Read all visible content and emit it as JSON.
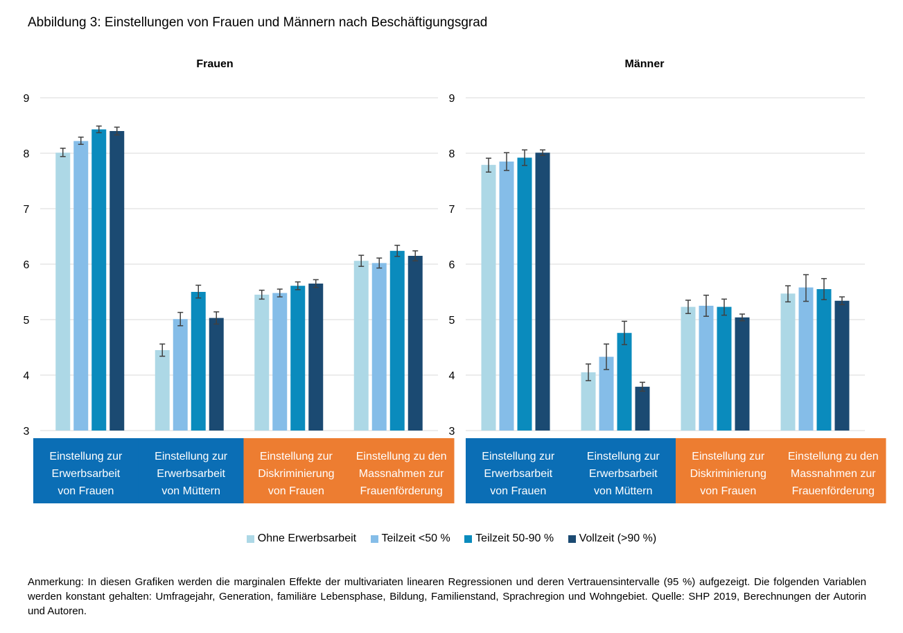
{
  "figure": {
    "title": "Abbildung 3: Einstellungen von Frauen und Männern nach Beschäftigungsgrad",
    "note": "Anmerkung: In diesen Grafiken werden die marginalen Effekte der multivariaten linearen Regressionen und deren Vertrauensintervalle (95 %) aufgezeigt. Die folgenden Variablen werden konstant gehalten: Umfragejahr, Generation, familiäre Lebensphase, Bildung, Familienstand, Sprachregion und Wohngebiet. Quelle: SHP 2019, Berechnungen der Autorin und Autoren."
  },
  "colors": {
    "series": [
      "#add8e6",
      "#85bde8",
      "#0a8bbd",
      "#1b4a72"
    ],
    "category_blue": "#0b6eb5",
    "category_orange": "#ed7d31",
    "grid": "#d9d9d9",
    "error_bar": "#404040"
  },
  "legend": [
    "Ohne Erwerbsarbeit",
    "Teilzeit <50 %",
    "Teilzeit 50-90 %",
    "Vollzeit (>90 %)"
  ],
  "chart_data": [
    {
      "type": "bar",
      "title": "Frauen",
      "ylim": [
        3,
        9
      ],
      "yticks": [
        3,
        4,
        5,
        6,
        7,
        8,
        9
      ],
      "grid": true,
      "categories": [
        {
          "lines": [
            "Einstellung zur",
            "Erwerbsarbeit",
            "von Frauen"
          ],
          "color": "blue"
        },
        {
          "lines": [
            "Einstellung zur",
            "Erwerbsarbeit",
            "von Müttern"
          ],
          "color": "blue"
        },
        {
          "lines": [
            "Einstellung zur",
            "Diskriminierung",
            "von Frauen"
          ],
          "color": "orange"
        },
        {
          "lines": [
            "Einstellung zu den",
            "Massnahmen zur",
            "Frauenförderung"
          ],
          "color": "orange"
        }
      ],
      "series": [
        {
          "name": "Ohne Erwerbsarbeit",
          "values": [
            8.01,
            4.45,
            5.45,
            6.06
          ],
          "ci": [
            [
              7.94,
              8.09
            ],
            [
              4.34,
              4.56
            ],
            [
              5.37,
              5.53
            ],
            [
              5.96,
              6.16
            ]
          ]
        },
        {
          "name": "Teilzeit <50 %",
          "values": [
            8.22,
            5.01,
            5.48,
            6.02
          ],
          "ci": [
            [
              8.16,
              8.29
            ],
            [
              4.89,
              5.13
            ],
            [
              5.41,
              5.55
            ],
            [
              5.93,
              6.11
            ]
          ]
        },
        {
          "name": "Teilzeit 50-90 %",
          "values": [
            8.43,
            5.5,
            5.61,
            6.24
          ],
          "ci": [
            [
              8.37,
              8.49
            ],
            [
              5.39,
              5.62
            ],
            [
              5.54,
              5.68
            ],
            [
              6.14,
              6.34
            ]
          ]
        },
        {
          "name": "Vollzeit (>90 %)",
          "values": [
            8.4,
            5.03,
            5.65,
            6.15
          ],
          "ci": [
            [
              8.33,
              8.47
            ],
            [
              4.92,
              5.14
            ],
            [
              5.58,
              5.72
            ],
            [
              6.06,
              6.24
            ]
          ]
        }
      ]
    },
    {
      "type": "bar",
      "title": "Männer",
      "ylim": [
        3,
        9
      ],
      "yticks": [
        3,
        4,
        5,
        6,
        7,
        8,
        9
      ],
      "grid": true,
      "categories": [
        {
          "lines": [
            "Einstellung zur",
            "Erwerbsarbeit",
            "von Frauen"
          ],
          "color": "blue"
        },
        {
          "lines": [
            "Einstellung zur",
            "Erwerbsarbeit",
            "von Müttern"
          ],
          "color": "blue"
        },
        {
          "lines": [
            "Einstellung zur",
            "Diskriminierung",
            "von Frauen"
          ],
          "color": "orange"
        },
        {
          "lines": [
            "Einstellung zu den",
            "Massnahmen zur",
            "Frauenförderung"
          ],
          "color": "orange"
        }
      ],
      "series": [
        {
          "name": "Ohne Erwerbsarbeit",
          "values": [
            7.79,
            4.05,
            5.23,
            5.47
          ],
          "ci": [
            [
              7.66,
              7.91
            ],
            [
              3.9,
              4.2
            ],
            [
              5.11,
              5.35
            ],
            [
              5.32,
              5.61
            ]
          ]
        },
        {
          "name": "Teilzeit <50 %",
          "values": [
            7.85,
            4.33,
            5.25,
            5.58
          ],
          "ci": [
            [
              7.69,
              8.01
            ],
            [
              4.1,
              4.56
            ],
            [
              5.06,
              5.44
            ],
            [
              5.33,
              5.81
            ]
          ]
        },
        {
          "name": "Teilzeit 50-90 %",
          "values": [
            7.92,
            4.76,
            5.23,
            5.55
          ],
          "ci": [
            [
              7.78,
              8.06
            ],
            [
              4.55,
              4.97
            ],
            [
              5.08,
              5.37
            ],
            [
              5.36,
              5.74
            ]
          ]
        },
        {
          "name": "Vollzeit (>90 %)",
          "values": [
            8.01,
            3.79,
            5.04,
            5.34
          ],
          "ci": [
            [
              7.96,
              8.06
            ],
            [
              3.71,
              3.87
            ],
            [
              4.98,
              5.1
            ],
            [
              5.27,
              5.41
            ]
          ]
        }
      ]
    }
  ]
}
